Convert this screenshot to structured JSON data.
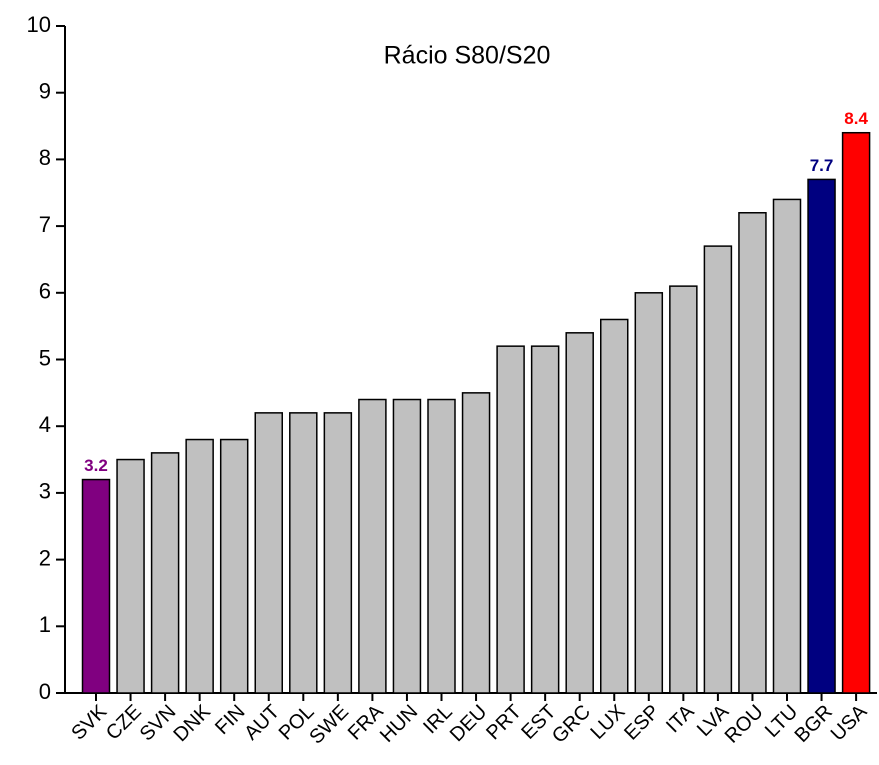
{
  "chart_data": {
    "type": "bar",
    "title": "Rácio S80/S20",
    "categories": [
      "SVK",
      "CZE",
      "SVN",
      "DNK",
      "FIN",
      "AUT",
      "POL",
      "SWE",
      "FRA",
      "HUN",
      "IRL",
      "DEU",
      "PRT",
      "EST",
      "GRC",
      "LUX",
      "ESP",
      "ITA",
      "LVA",
      "ROU",
      "LTU",
      "BGR",
      "USA"
    ],
    "values": [
      3.2,
      3.5,
      3.6,
      3.8,
      3.8,
      4.2,
      4.2,
      4.2,
      4.4,
      4.4,
      4.4,
      4.5,
      5.2,
      5.2,
      5.4,
      5.6,
      6.0,
      6.1,
      6.7,
      7.2,
      7.4,
      7.7,
      8.4
    ],
    "value_labels": [
      "3.2",
      null,
      null,
      null,
      null,
      null,
      null,
      null,
      null,
      null,
      null,
      null,
      null,
      null,
      null,
      null,
      null,
      null,
      null,
      null,
      null,
      "7.7",
      "8.4"
    ],
    "colors": [
      "#800080",
      "#c0c0c0",
      "#c0c0c0",
      "#c0c0c0",
      "#c0c0c0",
      "#c0c0c0",
      "#c0c0c0",
      "#c0c0c0",
      "#c0c0c0",
      "#c0c0c0",
      "#c0c0c0",
      "#c0c0c0",
      "#c0c0c0",
      "#c0c0c0",
      "#c0c0c0",
      "#c0c0c0",
      "#c0c0c0",
      "#c0c0c0",
      "#c0c0c0",
      "#c0c0c0",
      "#c0c0c0",
      "#000080",
      "#ff0000"
    ],
    "ylim": [
      0,
      10
    ],
    "yticks": [
      0,
      1,
      2,
      3,
      4,
      5,
      6,
      7,
      8,
      9,
      10
    ],
    "grid": false
  }
}
